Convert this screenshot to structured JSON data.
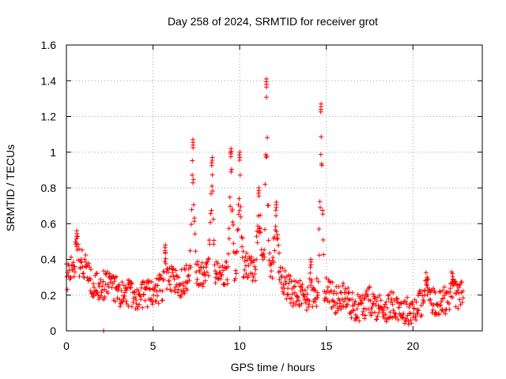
{
  "chart_data": {
    "type": "scatter",
    "title": "Day 258 of 2024, SRMTID for receiver grot",
    "xlabel": "GPS time / hours",
    "ylabel": "SRMTID / TECUs",
    "xlim": [
      0,
      24
    ],
    "ylim": [
      0,
      1.6
    ],
    "xticks": [
      0,
      5,
      10,
      15,
      20
    ],
    "xtick_labels": [
      "0",
      "5",
      "10",
      "15",
      "20"
    ],
    "yticks": [
      0,
      0.2,
      0.4,
      0.6,
      0.8,
      1.0,
      1.2,
      1.4,
      1.6
    ],
    "ytick_labels": [
      "0",
      "0.2",
      "0.4",
      "0.6",
      "0.8",
      "1",
      "1.2",
      "1.4",
      "1.6"
    ],
    "grid": true,
    "marker": "plus",
    "series_color": "#ff0000",
    "baseline": [
      [
        0.0,
        0.3
      ],
      [
        0.5,
        0.36
      ],
      [
        1.0,
        0.38
      ],
      [
        1.5,
        0.27
      ],
      [
        2.0,
        0.25
      ],
      [
        2.5,
        0.27
      ],
      [
        3.0,
        0.21
      ],
      [
        3.5,
        0.22
      ],
      [
        4.0,
        0.2
      ],
      [
        4.5,
        0.2
      ],
      [
        5.0,
        0.22
      ],
      [
        5.5,
        0.24
      ],
      [
        6.0,
        0.3
      ],
      [
        6.5,
        0.25
      ],
      [
        7.0,
        0.3
      ],
      [
        7.5,
        0.33
      ],
      [
        8.0,
        0.32
      ],
      [
        8.5,
        0.33
      ],
      [
        9.0,
        0.3
      ],
      [
        9.5,
        0.34
      ],
      [
        10.0,
        0.38
      ],
      [
        10.5,
        0.36
      ],
      [
        11.0,
        0.33
      ],
      [
        11.5,
        0.36
      ],
      [
        12.0,
        0.38
      ],
      [
        12.5,
        0.28
      ],
      [
        13.0,
        0.22
      ],
      [
        13.5,
        0.2
      ],
      [
        14.0,
        0.18
      ],
      [
        14.5,
        0.22
      ],
      [
        15.0,
        0.25
      ],
      [
        15.5,
        0.17
      ],
      [
        16.0,
        0.2
      ],
      [
        16.5,
        0.14
      ],
      [
        17.0,
        0.13
      ],
      [
        17.5,
        0.17
      ],
      [
        18.0,
        0.13
      ],
      [
        18.5,
        0.13
      ],
      [
        19.0,
        0.15
      ],
      [
        19.5,
        0.11
      ],
      [
        20.0,
        0.12
      ],
      [
        20.5,
        0.16
      ],
      [
        21.0,
        0.18
      ],
      [
        21.5,
        0.16
      ],
      [
        22.0,
        0.18
      ],
      [
        22.5,
        0.2
      ],
      [
        22.9,
        0.2
      ]
    ],
    "spikes": [
      {
        "center": 0.6,
        "width": 0.15,
        "peak": 0.56
      },
      {
        "center": 5.7,
        "width": 0.05,
        "peak": 0.48
      },
      {
        "center": 7.3,
        "width": 0.18,
        "peak": 1.07
      },
      {
        "center": 8.4,
        "width": 0.2,
        "peak": 0.97
      },
      {
        "center": 9.5,
        "width": 0.18,
        "peak": 1.02
      },
      {
        "center": 10.0,
        "width": 0.2,
        "peak": 1.0
      },
      {
        "center": 11.1,
        "width": 0.2,
        "peak": 0.8
      },
      {
        "center": 11.55,
        "width": 0.15,
        "peak": 1.41
      },
      {
        "center": 12.1,
        "width": 0.2,
        "peak": 0.72
      },
      {
        "center": 14.1,
        "width": 0.1,
        "peak": 0.4
      },
      {
        "center": 14.7,
        "width": 0.18,
        "peak": 1.27
      },
      {
        "center": 20.8,
        "width": 0.15,
        "peak": 0.3
      },
      {
        "center": 22.3,
        "width": 0.2,
        "peak": 0.32
      }
    ],
    "outliers": [
      {
        "x": 2.15,
        "y": 0.0
      }
    ]
  }
}
